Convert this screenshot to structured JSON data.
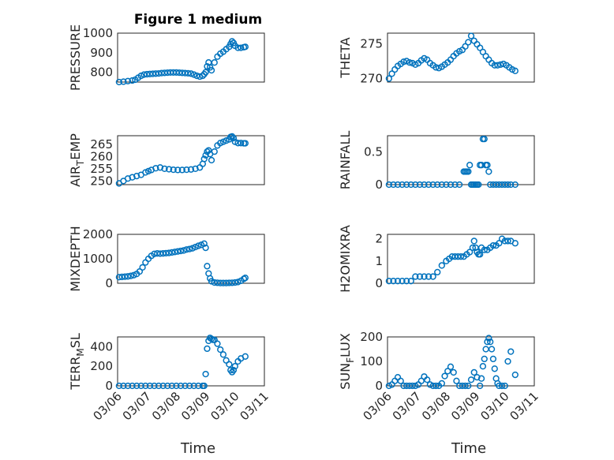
{
  "chart_data": {
    "type": "scatter",
    "title": "Figure 1 medium",
    "marker_color": "#0072BD",
    "marker": "open-circle",
    "grid": "on (major and minor)",
    "x_tick_labels": [
      "03/06",
      "03/07",
      "03/08",
      "03/09",
      "03/10",
      "03/11"
    ],
    "x_tick_values": [
      0,
      1,
      2,
      3,
      4,
      5
    ],
    "xlabel": "Time",
    "panels": [
      {
        "id": "pressure",
        "ylabel_main": "PRESSURE",
        "ylabel_sub": "",
        "ylabel_tail": "",
        "ylim": [
          750,
          1000
        ],
        "yticks": [
          800,
          900,
          1000
        ],
        "show_xticklabels": false,
        "x": [
          0.05,
          0.2,
          0.35,
          0.5,
          0.6,
          0.7,
          0.8,
          0.9,
          1.0,
          1.1,
          1.2,
          1.3,
          1.4,
          1.5,
          1.6,
          1.7,
          1.8,
          1.9,
          2.0,
          2.1,
          2.2,
          2.3,
          2.4,
          2.5,
          2.6,
          2.7,
          2.8,
          2.9,
          2.95,
          3.0,
          3.05,
          3.1,
          3.15,
          3.2,
          3.3,
          3.4,
          3.5,
          3.6,
          3.7,
          3.8,
          3.85,
          3.9,
          3.95,
          4.0,
          4.1,
          4.2,
          4.3,
          4.35
        ],
        "y": [
          750,
          752,
          755,
          758,
          762,
          772,
          782,
          788,
          790,
          791,
          792,
          793,
          794,
          796,
          797,
          798,
          799,
          799,
          799,
          798,
          797,
          796,
          795,
          793,
          788,
          782,
          778,
          782,
          790,
          800,
          830,
          850,
          825,
          810,
          850,
          880,
          895,
          905,
          918,
          930,
          945,
          958,
          950,
          935,
          925,
          925,
          928,
          930
        ]
      },
      {
        "id": "theta",
        "ylabel_main": "THETA",
        "ylabel_sub": "",
        "ylabel_tail": "",
        "ylim": [
          269.5,
          276.5
        ],
        "yticks": [
          270,
          275
        ],
        "show_xticklabels": false,
        "x": [
          0.05,
          0.15,
          0.25,
          0.35,
          0.45,
          0.55,
          0.65,
          0.75,
          0.85,
          0.95,
          1.05,
          1.15,
          1.25,
          1.35,
          1.45,
          1.55,
          1.65,
          1.75,
          1.85,
          1.95,
          2.05,
          2.15,
          2.25,
          2.35,
          2.45,
          2.55,
          2.65,
          2.75,
          2.85,
          2.95,
          3.05,
          3.15,
          3.25,
          3.35,
          3.45,
          3.55,
          3.65,
          3.75,
          3.85,
          3.95,
          4.05,
          4.15,
          4.25,
          4.35
        ],
        "y": [
          270,
          270.7,
          271.3,
          271.8,
          272.1,
          272.4,
          272.5,
          272.3,
          272.2,
          272.0,
          272.2,
          272.6,
          272.9,
          272.7,
          272.2,
          271.9,
          271.6,
          271.5,
          271.7,
          272.0,
          272.3,
          272.7,
          273.2,
          273.6,
          273.9,
          274.1,
          274.6,
          275.2,
          276.1,
          275.4,
          274.9,
          274.4,
          273.8,
          273.2,
          272.7,
          272.2,
          271.9,
          271.9,
          272.0,
          272.1,
          271.9,
          271.6,
          271.3,
          271.1
        ]
      },
      {
        "id": "air_temp",
        "ylabel_main": "AIR",
        "ylabel_sub": "T",
        "ylabel_tail": "EMP",
        "ylim": [
          248.5,
          268.5
        ],
        "yticks": [
          250,
          255,
          260,
          265
        ],
        "show_xticklabels": false,
        "x": [
          0.05,
          0.2,
          0.35,
          0.5,
          0.65,
          0.8,
          0.95,
          1.05,
          1.15,
          1.3,
          1.45,
          1.6,
          1.75,
          1.9,
          2.05,
          2.2,
          2.35,
          2.5,
          2.65,
          2.8,
          2.9,
          2.95,
          3.0,
          3.05,
          3.1,
          3.15,
          3.2,
          3.3,
          3.4,
          3.5,
          3.6,
          3.7,
          3.8,
          3.85,
          3.9,
          3.95,
          4.0,
          4.1,
          4.2,
          4.3,
          4.35
        ],
        "y": [
          249,
          250,
          251,
          251.5,
          252,
          252.5,
          253.5,
          254,
          254.5,
          255.2,
          255.5,
          255,
          254.8,
          254.6,
          254.5,
          254.5,
          254.6,
          254.7,
          255,
          255.5,
          257,
          259,
          260.5,
          262,
          262.5,
          261,
          258.5,
          262,
          264.5,
          265.5,
          266,
          266.5,
          267,
          268,
          268.2,
          267.5,
          266,
          265.5,
          265.5,
          265.4,
          265.4
        ]
      },
      {
        "id": "rainfall",
        "ylabel_main": "RAINFALL",
        "ylabel_sub": "",
        "ylabel_tail": "",
        "ylim": [
          0,
          0.75
        ],
        "yticks": [
          0,
          0.5
        ],
        "show_xticklabels": false,
        "x": [
          0.05,
          0.2,
          0.35,
          0.5,
          0.65,
          0.8,
          0.95,
          1.1,
          1.25,
          1.4,
          1.55,
          1.7,
          1.85,
          2.0,
          2.15,
          2.3,
          2.45,
          2.6,
          2.65,
          2.7,
          2.75,
          2.8,
          2.85,
          2.9,
          2.95,
          3.0,
          3.05,
          3.1,
          3.15,
          3.2,
          3.25,
          3.3,
          3.35,
          3.4,
          3.45,
          3.5,
          3.6,
          3.7,
          3.8,
          3.9,
          4.0,
          4.1,
          4.2,
          4.35
        ],
        "y": [
          0,
          0,
          0,
          0,
          0,
          0,
          0,
          0,
          0,
          0,
          0,
          0,
          0,
          0,
          0,
          0,
          0,
          0.2,
          0.2,
          0.2,
          0.2,
          0.3,
          0,
          0,
          0,
          0,
          0,
          0,
          0.3,
          0.3,
          0.7,
          0.7,
          0.3,
          0.3,
          0.2,
          0,
          0,
          0,
          0,
          0,
          0,
          0,
          0,
          0
        ]
      },
      {
        "id": "mixdepth",
        "ylabel_main": "MIXDEPTH",
        "ylabel_sub": "",
        "ylabel_tail": "",
        "ylim": [
          0,
          2000
        ],
        "yticks": [
          0,
          1000,
          2000
        ],
        "show_xticklabels": false,
        "x": [
          0.05,
          0.15,
          0.25,
          0.35,
          0.45,
          0.55,
          0.65,
          0.75,
          0.85,
          0.95,
          1.05,
          1.15,
          1.25,
          1.35,
          1.45,
          1.55,
          1.65,
          1.75,
          1.85,
          1.95,
          2.05,
          2.15,
          2.25,
          2.35,
          2.45,
          2.55,
          2.65,
          2.75,
          2.85,
          2.95,
          3.0,
          3.05,
          3.1,
          3.15,
          3.2,
          3.3,
          3.4,
          3.5,
          3.6,
          3.7,
          3.8,
          3.9,
          4.0,
          4.1,
          4.2,
          4.3,
          4.35
        ],
        "y": [
          250,
          260,
          270,
          280,
          300,
          330,
          380,
          480,
          650,
          850,
          1000,
          1120,
          1200,
          1220,
          1210,
          1220,
          1230,
          1240,
          1260,
          1280,
          1300,
          1320,
          1340,
          1380,
          1400,
          1430,
          1480,
          1530,
          1570,
          1620,
          1450,
          700,
          400,
          200,
          80,
          30,
          20,
          10,
          10,
          10,
          15,
          20,
          30,
          50,
          100,
          180,
          220
        ]
      },
      {
        "id": "h2omixra",
        "ylabel_main": "H2OMIXRA",
        "ylabel_sub": "",
        "ylabel_tail": "",
        "ylim": [
          0,
          2.2
        ],
        "yticks": [
          0,
          1,
          2
        ],
        "show_xticklabels": false,
        "x": [
          0.05,
          0.2,
          0.35,
          0.5,
          0.65,
          0.8,
          0.95,
          1.1,
          1.25,
          1.4,
          1.55,
          1.7,
          1.85,
          2.0,
          2.1,
          2.2,
          2.3,
          2.4,
          2.5,
          2.6,
          2.7,
          2.8,
          2.9,
          2.95,
          3.0,
          3.05,
          3.1,
          3.15,
          3.2,
          3.3,
          3.4,
          3.5,
          3.6,
          3.7,
          3.8,
          3.9,
          4.0,
          4.1,
          4.2,
          4.35
        ],
        "y": [
          0.1,
          0.1,
          0.1,
          0.1,
          0.1,
          0.1,
          0.3,
          0.3,
          0.3,
          0.3,
          0.3,
          0.5,
          0.8,
          1.0,
          1.1,
          1.2,
          1.2,
          1.2,
          1.2,
          1.2,
          1.3,
          1.4,
          1.6,
          1.9,
          1.6,
          1.4,
          1.3,
          1.3,
          1.6,
          1.5,
          1.5,
          1.6,
          1.7,
          1.7,
          1.8,
          2.0,
          1.9,
          1.9,
          1.9,
          1.8
        ]
      },
      {
        "id": "terr_msl",
        "ylabel_main": "TERR",
        "ylabel_sub": "M",
        "ylabel_tail": "SL",
        "ylim": [
          0,
          500
        ],
        "yticks": [
          0,
          200,
          400
        ],
        "show_xticklabels": true,
        "x": [
          0.05,
          0.2,
          0.35,
          0.5,
          0.65,
          0.8,
          0.95,
          1.1,
          1.25,
          1.4,
          1.55,
          1.7,
          1.85,
          2.0,
          2.15,
          2.3,
          2.45,
          2.6,
          2.75,
          2.9,
          2.95,
          3.0,
          3.05,
          3.1,
          3.15,
          3.2,
          3.25,
          3.3,
          3.4,
          3.5,
          3.6,
          3.7,
          3.8,
          3.85,
          3.9,
          3.95,
          4.0,
          4.1,
          4.2,
          4.35
        ],
        "y": [
          0,
          0,
          0,
          0,
          0,
          0,
          0,
          0,
          0,
          0,
          0,
          0,
          0,
          0,
          0,
          0,
          0,
          0,
          0,
          0,
          0,
          120,
          380,
          460,
          490,
          480,
          470,
          470,
          430,
          370,
          320,
          260,
          220,
          160,
          140,
          160,
          200,
          250,
          280,
          300
        ]
      },
      {
        "id": "sun_flux",
        "ylabel_main": "SUN",
        "ylabel_sub": "F",
        "ylabel_tail": "LUX",
        "ylim": [
          0,
          200
        ],
        "yticks": [
          0,
          100,
          200
        ],
        "show_xticklabels": true,
        "x": [
          0.05,
          0.15,
          0.25,
          0.35,
          0.45,
          0.55,
          0.65,
          0.75,
          0.85,
          0.95,
          1.05,
          1.15,
          1.25,
          1.35,
          1.45,
          1.55,
          1.65,
          1.75,
          1.85,
          1.95,
          2.05,
          2.15,
          2.25,
          2.35,
          2.45,
          2.55,
          2.65,
          2.75,
          2.85,
          2.95,
          3.05,
          3.15,
          3.2,
          3.25,
          3.3,
          3.35,
          3.4,
          3.45,
          3.5,
          3.55,
          3.6,
          3.65,
          3.7,
          3.75,
          3.8,
          3.9,
          4.0,
          4.1,
          4.2,
          4.35
        ],
        "y": [
          0,
          5,
          20,
          35,
          20,
          0,
          0,
          0,
          0,
          0,
          5,
          20,
          38,
          25,
          5,
          0,
          0,
          0,
          10,
          40,
          60,
          78,
          55,
          20,
          0,
          0,
          0,
          0,
          25,
          55,
          35,
          0,
          30,
          80,
          110,
          150,
          180,
          195,
          180,
          150,
          110,
          70,
          30,
          10,
          0,
          0,
          0,
          100,
          140,
          45
        ]
      }
    ]
  }
}
